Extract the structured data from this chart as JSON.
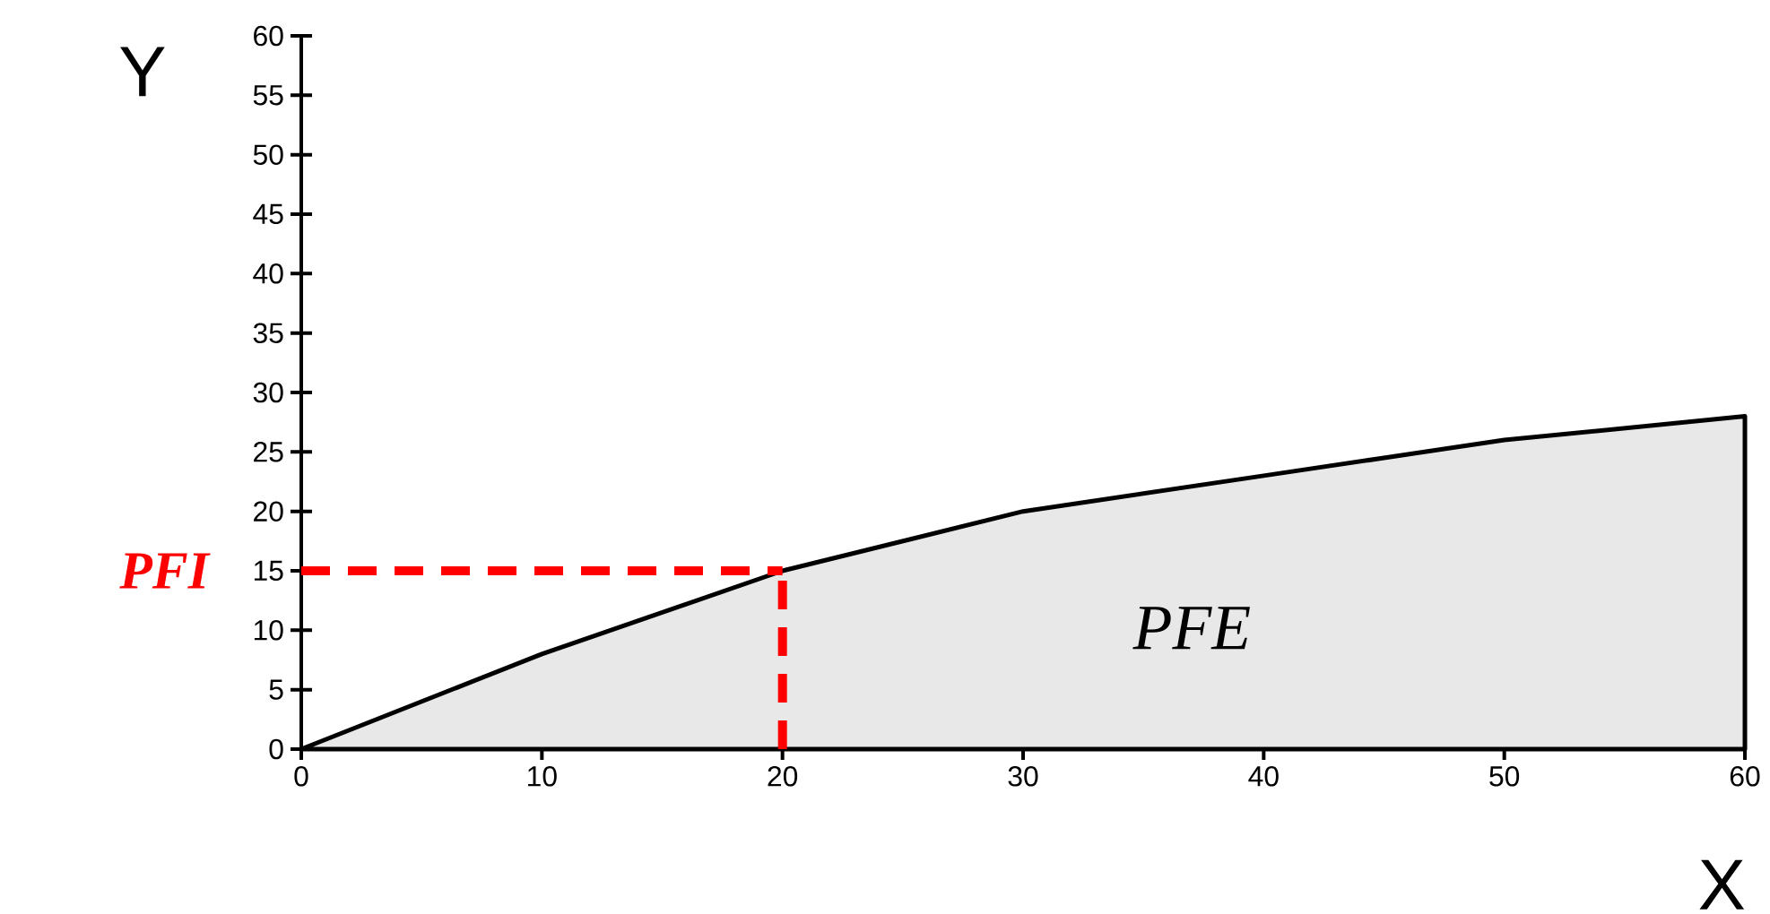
{
  "chart_data": {
    "type": "area",
    "xlabel": "X",
    "ylabel": "Y",
    "x": [
      0,
      10,
      20,
      30,
      40,
      50,
      60
    ],
    "series": [
      {
        "color": "#e8e8e8",
        "values": [
          0,
          8,
          15,
          20,
          23,
          26,
          28
        ]
      }
    ],
    "xlim": [
      0,
      60
    ],
    "ylim": [
      0,
      60
    ],
    "xticks": [
      0,
      10,
      20,
      30,
      40,
      50,
      60
    ],
    "yticks": [
      0,
      5,
      10,
      15,
      20,
      25,
      30,
      35,
      40,
      45,
      50,
      55,
      60
    ],
    "ref_lines": [
      {
        "axis": "x",
        "value": 20,
        "color": "#ff0000",
        "line_style": "dashed"
      },
      {
        "axis": "y",
        "value": 15,
        "label": "PFI",
        "color": "#ff0000",
        "line_style": "dashed"
      }
    ],
    "annotations": [
      "PFE"
    ]
  }
}
